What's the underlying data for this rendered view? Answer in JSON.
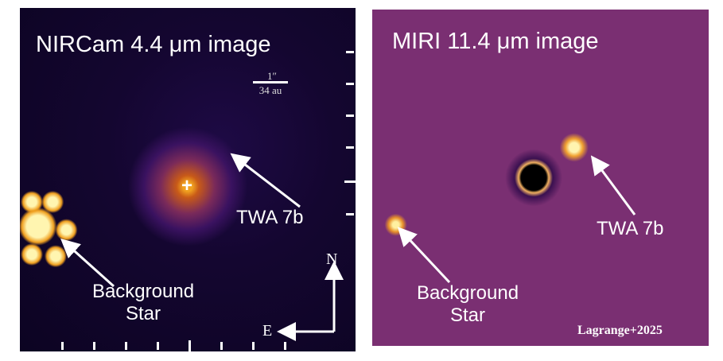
{
  "left_panel": {
    "title": "NIRCam 4.4 μm image",
    "scale_top": "1″",
    "scale_bottom": "34 au",
    "target_label": "TWA 7b",
    "bg_label_1": "Background",
    "bg_label_2": "Star",
    "compass_n": "N",
    "compass_e": "E"
  },
  "right_panel": {
    "title": "MIRI 11.4 μm image",
    "target_label": "TWA 7b",
    "bg_label_1": "Background",
    "bg_label_2": "Star",
    "credit": "Lagrange+2025"
  }
}
